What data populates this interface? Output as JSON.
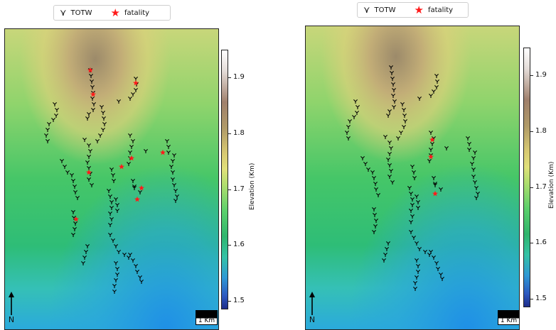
{
  "legend": {
    "totw_label": "TOTW",
    "fatality_label": "fatality",
    "totw_symbol": "⋎",
    "fatality_symbol": "★"
  },
  "scale_bar_label": "1 Km",
  "north_label": "N",
  "colorbar": {
    "title": "Elevation (Km)",
    "ticks": [
      "1.9",
      "1.8",
      "1.7",
      "1.6",
      "1.5"
    ]
  },
  "colors": {
    "fatality": "#ff1a1a",
    "totw": "#000000"
  },
  "icons": [
    "totw-marker-icon",
    "fatality-star-icon",
    "north-arrow-icon"
  ]
}
